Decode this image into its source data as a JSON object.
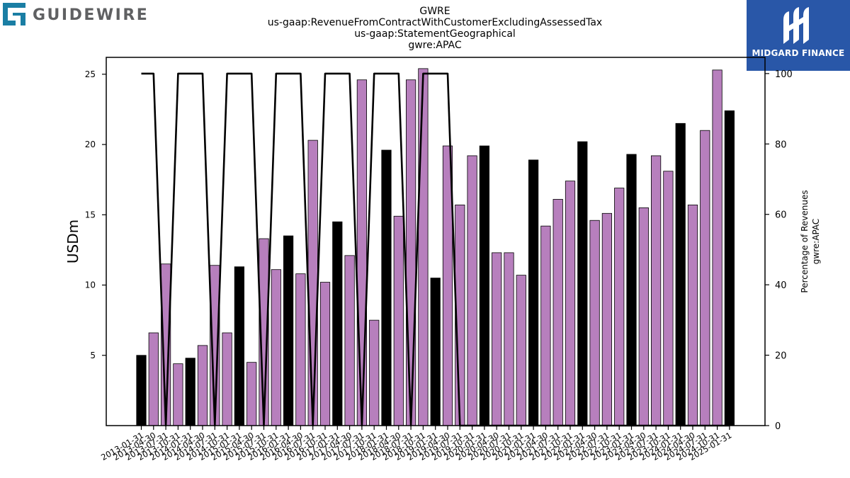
{
  "logos": {
    "left_wordmark": "GUIDEWIRE",
    "right_wordmark": "MIDGARD FINANCE"
  },
  "chart_data": {
    "type": "bar",
    "title_lines": [
      "GWRE",
      "us-gaap:RevenueFromContractWithCustomerExcludingAssessedTax",
      "us-gaap:StatementGeographical",
      "gwre:APAC"
    ],
    "ylabel": "USDm",
    "y2label_lines": [
      "Percentage of Revenues",
      "gwre:APAC"
    ],
    "ylim": [
      0,
      26.2
    ],
    "y_ticks": [
      5,
      10,
      15,
      20,
      25
    ],
    "y2lim": [
      0,
      104.6
    ],
    "y2_ticks": [
      0,
      20,
      40,
      60,
      80,
      100
    ],
    "colors": {
      "fiscal_q1": "#000000",
      "other_quarter": "#b77fbd",
      "line": "#000000"
    },
    "categories": [
      "2013-01-31",
      "2013-04-30",
      "2013-07-31",
      "2013-10-31",
      "2014-01-31",
      "2014-04-30",
      "2014-07-31",
      "2014-10-31",
      "2015-01-31",
      "2015-04-30",
      "2015-07-31",
      "2015-10-31",
      "2016-01-31",
      "2016-04-30",
      "2016-07-31",
      "2016-10-31",
      "2017-01-31",
      "2017-04-30",
      "2017-07-31",
      "2017-10-31",
      "2018-01-31",
      "2018-04-30",
      "2018-07-31",
      "2018-10-31",
      "2019-01-31",
      "2019-04-30",
      "2019-07-31",
      "2019-10-31",
      "2020-01-31",
      "2020-04-30",
      "2020-07-31",
      "2020-10-31",
      "2021-01-31",
      "2021-04-30",
      "2021-07-31",
      "2021-10-31",
      "2022-01-31",
      "2022-04-30",
      "2022-07-31",
      "2022-10-31",
      "2023-01-31",
      "2023-04-30",
      "2023-07-31",
      "2023-10-31",
      "2024-01-31",
      "2024-04-30",
      "2024-07-31",
      "2024-10-31",
      "2025-01-31"
    ],
    "series": [
      {
        "values": [
          5.0,
          6.6,
          11.5,
          4.4,
          4.8,
          5.7,
          11.4,
          6.6,
          11.3,
          4.5,
          13.3,
          11.1,
          13.5,
          10.8,
          20.3,
          10.2,
          14.5,
          12.1,
          24.6,
          7.5,
          19.6,
          14.9,
          24.6,
          25.4,
          10.5,
          19.9,
          15.7,
          19.2,
          19.9,
          12.3,
          12.3,
          10.7,
          18.9,
          14.2,
          16.1,
          17.4,
          20.2,
          14.6,
          15.1,
          16.9,
          19.3,
          15.5,
          19.2,
          18.1,
          21.5,
          15.7,
          21.0,
          25.3,
          22.4
        ],
        "highlight": [
          true,
          false,
          false,
          false,
          true,
          false,
          false,
          false,
          true,
          false,
          false,
          false,
          true,
          false,
          false,
          false,
          true,
          false,
          false,
          false,
          true,
          false,
          false,
          false,
          true,
          false,
          false,
          false,
          true,
          false,
          false,
          false,
          true,
          false,
          false,
          false,
          true,
          false,
          false,
          false,
          true,
          false,
          false,
          false,
          true,
          false,
          false,
          false,
          true
        ]
      },
      {
        "type": "line",
        "axis": "right",
        "values": [
          100,
          100,
          0,
          100,
          100,
          100,
          0,
          100,
          100,
          100,
          0,
          100,
          100,
          100,
          0,
          100,
          100,
          100,
          0,
          100,
          100,
          100,
          0,
          100,
          100,
          100,
          0,
          0,
          0,
          0,
          0,
          0,
          0,
          0,
          0,
          0,
          0,
          0,
          0,
          0,
          0,
          0,
          0,
          0,
          0,
          0,
          0,
          0,
          0
        ]
      }
    ]
  }
}
